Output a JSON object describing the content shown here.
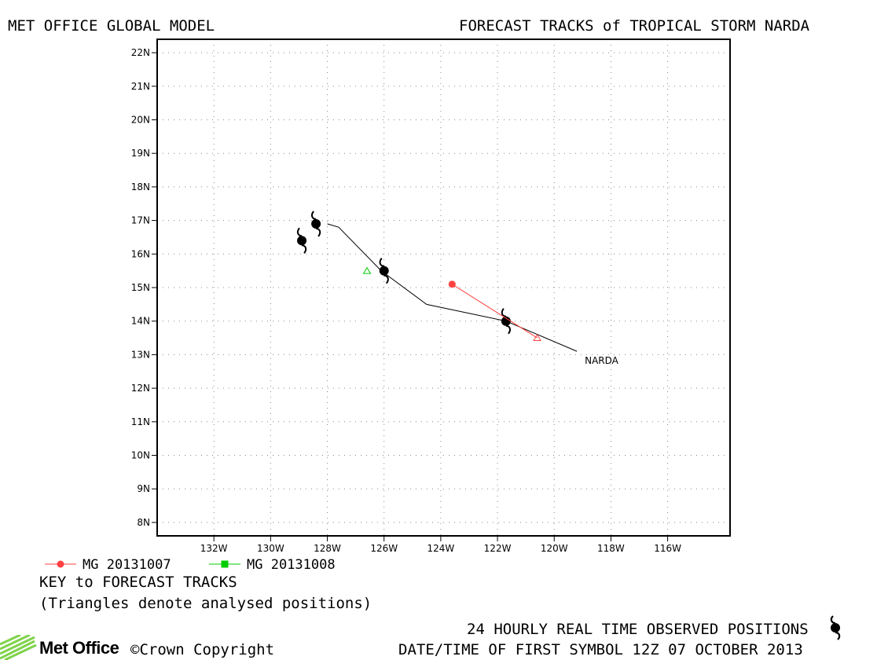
{
  "header": {
    "left": "MET OFFICE GLOBAL MODEL",
    "right": "FORECAST TRACKS of TROPICAL STORM NARDA"
  },
  "legend": {
    "entries": [
      {
        "label": "MG 20131007",
        "color": "#ff4040",
        "marker": "circle"
      },
      {
        "label": "MG 20131008",
        "color": "#00cc00",
        "marker": "square"
      }
    ],
    "key_title": "KEY to FORECAST TRACKS",
    "key_note": "(Triangles denote analysed positions)"
  },
  "footer": {
    "brand": "Met Office",
    "copyright": "©Crown Copyright",
    "observed_label": "24 HOURLY REAL TIME OBSERVED POSITIONS",
    "datetime_label": "DATE/TIME OF FIRST SYMBOL 12Z 07 OCTOBER 2013"
  },
  "chart_data": {
    "type": "line",
    "title": "FORECAST TRACKS of TROPICAL STORM NARDA",
    "x_axis": {
      "range": [
        -134.0,
        -113.8
      ],
      "ticks": [
        -132,
        -130,
        -128,
        -126,
        -124,
        -122,
        -120,
        -118,
        -116
      ],
      "tick_labels": [
        "132W",
        "130W",
        "128W",
        "126W",
        "124W",
        "122W",
        "120W",
        "118W",
        "116W"
      ]
    },
    "y_axis": {
      "range": [
        7.6,
        22.4
      ],
      "ticks": [
        8,
        9,
        10,
        11,
        12,
        13,
        14,
        15,
        16,
        17,
        18,
        19,
        20,
        21,
        22
      ],
      "tick_labels": [
        "8N",
        "9N",
        "10N",
        "11N",
        "12N",
        "13N",
        "14N",
        "15N",
        "16N",
        "17N",
        "18N",
        "19N",
        "20N",
        "21N",
        "22N"
      ]
    },
    "grid": true,
    "series": [
      {
        "name": "NARDA",
        "kind": "observed_track",
        "color": "#000000",
        "points": [
          [
            -119.2,
            13.1
          ],
          [
            -121.7,
            14.0
          ],
          [
            -124.5,
            14.5
          ],
          [
            -126.1,
            15.5
          ],
          [
            -127.6,
            16.8
          ],
          [
            -128.0,
            16.9
          ]
        ],
        "observed_positions": [
          [
            -121.7,
            14.0
          ],
          [
            -126.0,
            15.5
          ],
          [
            -128.4,
            16.9
          ],
          [
            -128.9,
            16.4
          ]
        ]
      },
      {
        "name": "MG 20131007",
        "color": "#ff4040",
        "points": [
          [
            -120.6,
            13.5
          ],
          [
            -123.6,
            15.1
          ]
        ],
        "analysed_position": [
          -120.6,
          13.5
        ],
        "end_marker": [
          -123.6,
          15.1
        ]
      },
      {
        "name": "MG 20131008",
        "color": "#00cc00",
        "points": [
          [
            -126.6,
            15.5
          ]
        ],
        "analysed_position": [
          -126.6,
          15.5
        ]
      }
    ]
  }
}
